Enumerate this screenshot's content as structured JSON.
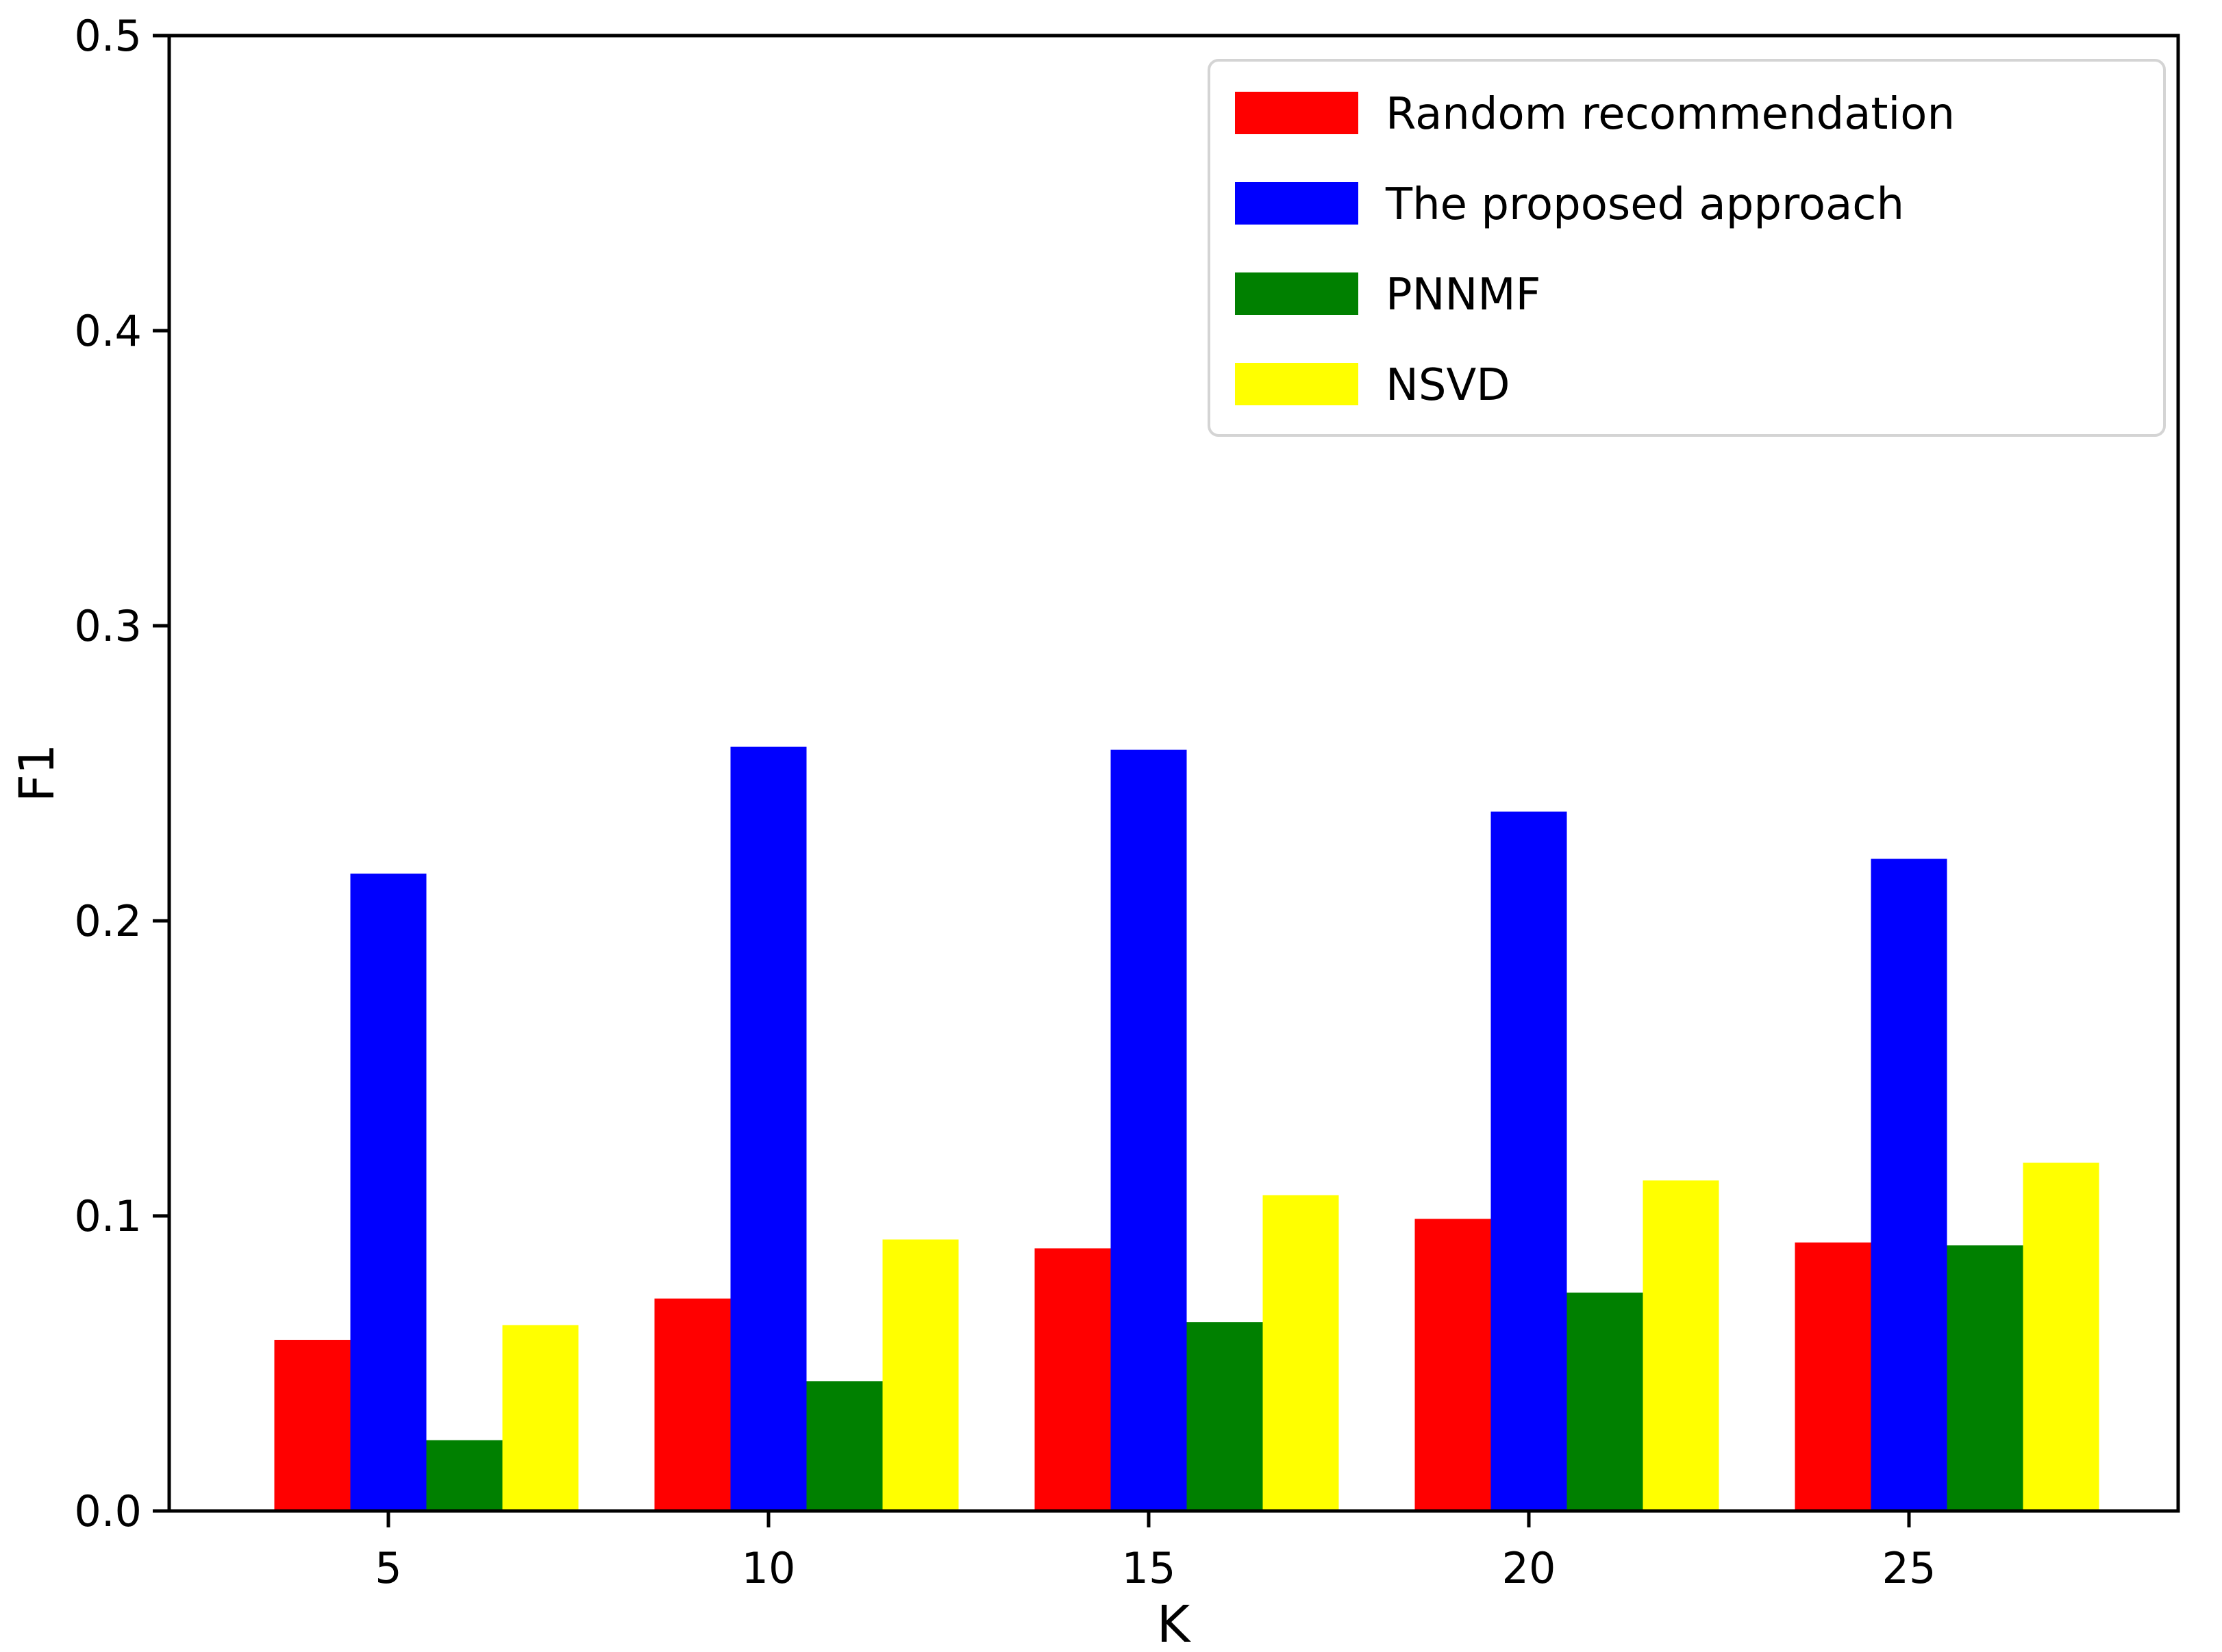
{
  "chart_data": {
    "type": "bar",
    "title": "",
    "xlabel": "K",
    "ylabel": "F1",
    "categories": [
      "5",
      "10",
      "15",
      "20",
      "25"
    ],
    "series": [
      {
        "name": "Random recommendation",
        "color": "#ff0000",
        "values": [
          0.058,
          0.072,
          0.089,
          0.099,
          0.091
        ]
      },
      {
        "name": "The proposed approach",
        "color": "#0000ff",
        "values": [
          0.216,
          0.259,
          0.258,
          0.237,
          0.221
        ]
      },
      {
        "name": "PNNMF",
        "color": "#008000",
        "values": [
          0.024,
          0.044,
          0.064,
          0.074,
          0.09
        ]
      },
      {
        "name": "NSVD",
        "color": "#ffff00",
        "values": [
          0.063,
          0.092,
          0.107,
          0.112,
          0.118
        ]
      }
    ],
    "ylim": [
      0.0,
      0.5
    ],
    "yticks": [
      "0.0",
      "0.1",
      "0.2",
      "0.3",
      "0.4",
      "0.5"
    ],
    "grid": false,
    "legend_position": "upper right",
    "legend_border_color": "#d4d4d4",
    "bar_color_names": [
      "red",
      "blue",
      "green",
      "yellow"
    ],
    "axis_color": "#000000"
  }
}
